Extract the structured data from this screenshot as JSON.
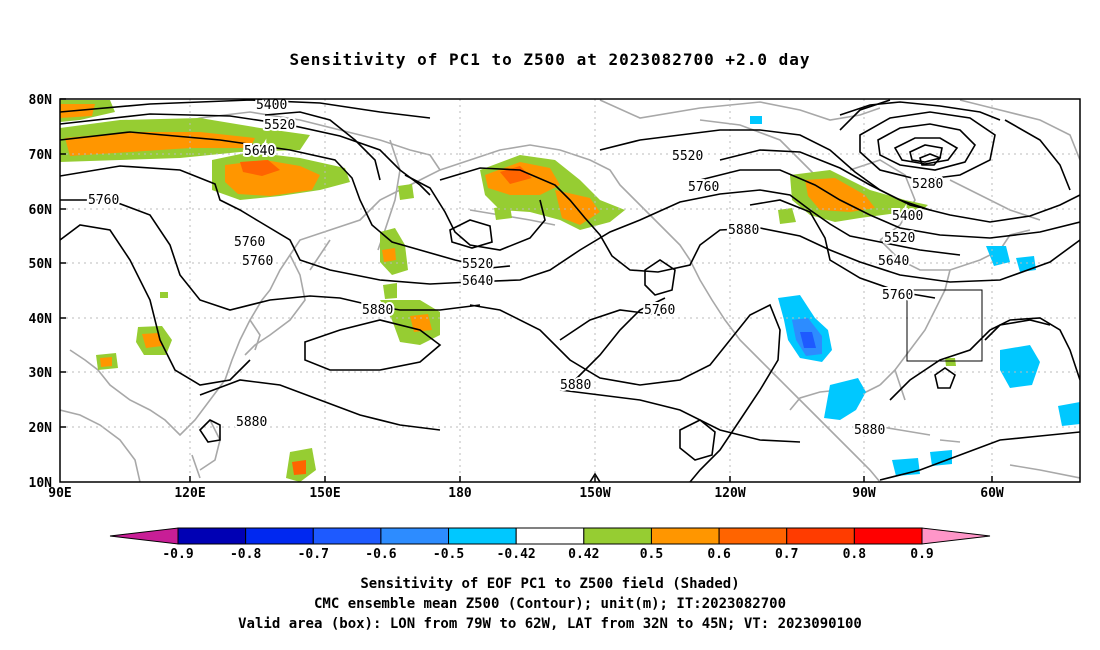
{
  "title": "Sensitivity of PC1 to Z500 at 2023082700 +2.0 day",
  "axes": {
    "lat_labels": [
      "80N",
      "70N",
      "60N",
      "50N",
      "40N",
      "30N",
      "20N",
      "10N"
    ],
    "lon_labels": [
      "90E",
      "120E",
      "150E",
      "180",
      "150W",
      "120W",
      "90W",
      "60W"
    ],
    "lat_range": [
      10,
      80
    ],
    "lon_range_east": [
      90,
      315
    ]
  },
  "contours": {
    "labels": [
      "5400",
      "5520",
      "5640",
      "5760",
      "5760",
      "5760",
      "5880",
      "5520",
      "5640",
      "5520",
      "5760",
      "5880",
      "5760",
      "5880",
      "5880",
      "5880",
      "5280",
      "5400",
      "5520",
      "5640",
      "5760"
    ],
    "unit": "m"
  },
  "valid_box": {
    "lon_west": 79,
    "lon_east": 62,
    "lat_south": 32,
    "lat_north": 45
  },
  "colorbar": {
    "labels": [
      "-0.9",
      "-0.8",
      "-0.7",
      "-0.6",
      "-0.5",
      "-0.42",
      "0.42",
      "0.5",
      "0.6",
      "0.7",
      "0.8",
      "0.9"
    ],
    "colors": [
      "#0000b4",
      "#0028f0",
      "#1e5aff",
      "#2d8cff",
      "#00c8ff",
      "#ffffff",
      "#96cd32",
      "#ff9600",
      "#ff6400",
      "#ff3c00",
      "#ff0000"
    ],
    "low_end_color": "#c81e96",
    "high_end_color": "#ff96c8"
  },
  "captions": {
    "line1": "Sensitivity of EOF PC1 to Z500 field (Shaded)",
    "line2": "CMC ensemble mean Z500 (Contour); unit(m); IT:2023082700",
    "line3": "Valid area (box): LON from 79W to 62W, LAT from 32N to 45N; VT: 2023090100"
  }
}
